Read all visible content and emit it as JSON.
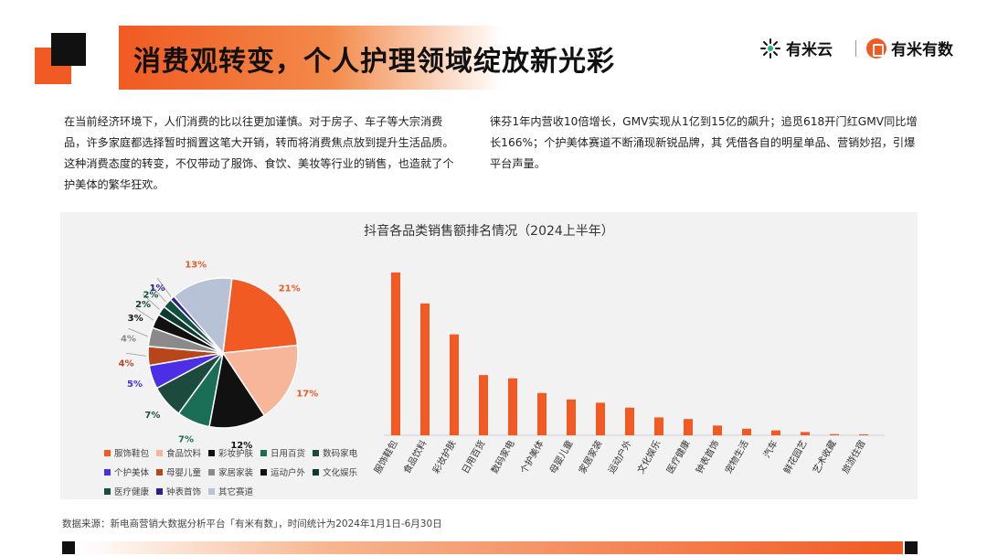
{
  "slide": {
    "title": "消费观转变，个人护理领域绽放新光彩",
    "paragraph_left": "在当前经济环境下，人们消费的比以往更加谨慎。对于房子、车子等大宗消费品，许多家庭都选择暂时搁置这笔大开销，转而将消费焦点放到提升生活品质。这种消费态度的转变，不仅带动了服饰、食饮、美妆等行业的销售，也造就了个护美体的繁华狂欢。",
    "paragraph_right": "徕芬1年内营收10倍增长，GMV实现从1亿到15亿的飙升；追觅618开门红GMV同比增长166%；个护美体赛道不断涌现新锐品牌，其 凭借各自的明星单品、营销妙招，引爆平台声量。",
    "source": "数据来源：新电商营销大数据分析平台「有米有数」，时间统计为2024年1月1日-6月30日"
  },
  "logos": {
    "brand1": "有米云",
    "brand2": "有米有数"
  },
  "colors": {
    "accent": "#f15a22",
    "black": "#111111"
  },
  "chart_data": [
    {
      "type": "pie",
      "title": "抖音各品类销售额排名情况（2024上半年）",
      "slices": [
        {
          "name": "服饰鞋包",
          "value": 21,
          "label": "21%",
          "color": "#f15a22"
        },
        {
          "name": "食品饮料",
          "value": 17,
          "label": "17%",
          "color": "#f7b59a"
        },
        {
          "name": "彩妆护肤",
          "value": 12,
          "label": "12%",
          "color": "#111111"
        },
        {
          "name": "日用百货",
          "value": 7,
          "label": "7%",
          "color": "#1a6e55"
        },
        {
          "name": "数码家电",
          "value": 7,
          "label": "7%",
          "color": "#1c4b3d"
        },
        {
          "name": "个护美体",
          "value": 5,
          "label": "5%",
          "color": "#4b2ee6"
        },
        {
          "name": "母婴儿童",
          "value": 4,
          "label": "4%",
          "color": "#b9461a"
        },
        {
          "name": "家居家装",
          "value": 4,
          "label": "4%",
          "color": "#8a8a8a"
        },
        {
          "name": "运动户外",
          "value": 3,
          "label": "3%",
          "color": "#111111"
        },
        {
          "name": "文化娱乐",
          "value": 2,
          "label": "2%",
          "color": "#0d3b30"
        },
        {
          "name": "医疗健康",
          "value": 2,
          "label": "2%",
          "color": "#14503f"
        },
        {
          "name": "钟表首饰",
          "value": 1,
          "label": "1%",
          "color": "#2a1f8f"
        },
        {
          "name": "其它赛道",
          "value": 13,
          "label": "13%",
          "color": "#b7c2d6"
        }
      ],
      "legend_rows": [
        [
          "服饰鞋包",
          "食品饮料",
          "彩妆护肤",
          "日用百货",
          "数码家电"
        ],
        [
          "个护美体",
          "母婴儿童",
          "家居家装",
          "运动户外",
          "文化娱乐"
        ],
        [
          "医疗健康",
          "钟表首饰",
          "其它赛道"
        ]
      ]
    },
    {
      "type": "bar",
      "categories": [
        "服饰鞋包",
        "食品饮料",
        "彩妆护肤",
        "日用百货",
        "数码家电",
        "个护美体",
        "母婴儿童",
        "家居家装",
        "运动户外",
        "文化娱乐",
        "医疗健康",
        "钟表首饰",
        "宠物生活",
        "汽车",
        "鲜花园艺",
        "艺术收藏",
        "旅游住宿"
      ],
      "values": [
        100,
        81,
        62,
        37,
        35,
        26,
        22,
        20,
        17,
        11,
        10,
        6,
        4,
        3,
        2,
        0.7,
        0.3
      ],
      "color": "#f15a22",
      "grid": false,
      "ylim": [
        0,
        100
      ]
    }
  ]
}
